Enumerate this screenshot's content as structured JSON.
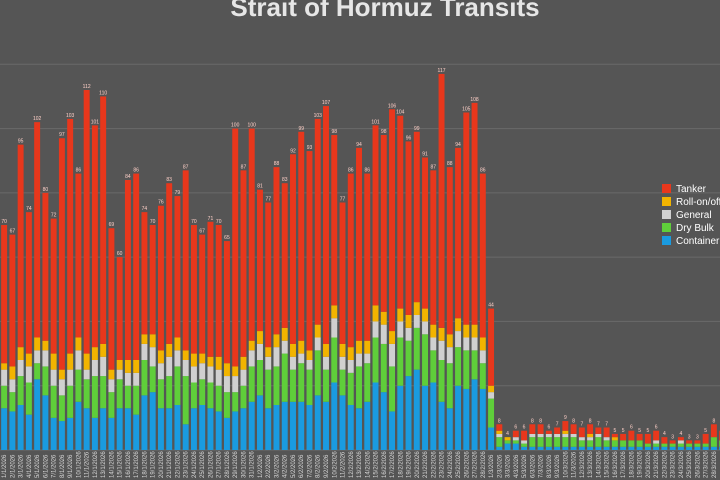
{
  "colors": {
    "background": "#555555",
    "gridline": "#6a6a6a",
    "title": "#e6e6e6",
    "tick": "#d8d8d8",
    "valueLabel": "#ffd0c8",
    "legendText": "#ffffff"
  },
  "chart_data": {
    "type": "bar",
    "stacked": true,
    "title": "Strait of Hormuz Transits",
    "xlabel": "",
    "ylabel": "",
    "ylim": [
      0,
      140
    ],
    "grid": true,
    "legend_position": "right",
    "legend_order": [
      "Tanker",
      "Roll-on/off",
      "General",
      "Dry Bulk",
      "Container"
    ],
    "categories": [
      "1/1/2026",
      "2/1/2026",
      "3/1/2026",
      "4/1/2026",
      "5/1/2026",
      "6/1/2026",
      "7/1/2026",
      "8/1/2026",
      "9/1/2026",
      "10/1/2026",
      "11/1/2026",
      "12/1/2026",
      "13/1/2026",
      "14/1/2026",
      "15/1/2026",
      "16/1/2026",
      "17/1/2026",
      "18/1/2026",
      "19/1/2026",
      "20/1/2026",
      "21/1/2026",
      "22/1/2026",
      "23/1/2026",
      "24/1/2026",
      "25/1/2026",
      "26/1/2026",
      "27/1/2026",
      "28/1/2026",
      "29/1/2026",
      "30/1/2026",
      "31/1/2026",
      "1/2/2026",
      "2/2/2026",
      "3/2/2026",
      "4/2/2026",
      "5/2/2026",
      "6/2/2026",
      "7/2/2026",
      "8/2/2026",
      "9/2/2026",
      "10/2/2026",
      "11/2/2026",
      "12/2/2026",
      "13/2/2026",
      "14/2/2026",
      "15/2/2026",
      "16/2/2026",
      "17/2/2026",
      "18/2/2026",
      "19/2/2026",
      "20/2/2026",
      "21/2/2026",
      "22/2/2026",
      "23/2/2026",
      "24/2/2026",
      "25/2/2026",
      "26/2/2026",
      "27/2/2026",
      "28/2/2026",
      "1/3/2026",
      "2/3/2026",
      "3/3/2026",
      "4/3/2026",
      "5/3/2026",
      "6/3/2026",
      "7/3/2026",
      "8/3/2026",
      "9/3/2026",
      "10/3/2026",
      "11/3/2026",
      "12/3/2026",
      "13/3/2026",
      "14/3/2026",
      "15/3/2026",
      "16/3/2026",
      "17/3/2026",
      "18/3/2026",
      "19/3/2026",
      "20/3/2026",
      "21/3/2026",
      "22/3/2026",
      "23/3/2026",
      "24/3/2026",
      "25/3/2026",
      "26/3/2026",
      "27/3/2026",
      "28/3/2026",
      "29/3/2026",
      "30/3/2026",
      "31/3/2026",
      "1/4/2026",
      "2/4/2026",
      "3/4/2026",
      "4/4/2026",
      "5/4/2026",
      "6/4/2026",
      "7/4/2026",
      "8/4/2026",
      "9/4/2026",
      "10/4/2026",
      "11/4/2026",
      "12/4/2026"
    ],
    "series": [
      {
        "name": "Container",
        "color": "#1a9be0",
        "values": [
          13,
          12,
          14,
          11,
          22,
          17,
          10,
          9,
          10,
          15,
          13,
          10,
          13,
          10,
          13,
          13,
          11,
          17,
          18,
          13,
          13,
          14,
          8,
          13,
          14,
          13,
          12,
          10,
          12,
          13,
          15,
          17,
          13,
          14,
          15,
          15,
          15,
          14,
          17,
          15,
          21,
          17,
          14,
          13,
          15,
          21,
          18,
          12,
          20,
          23,
          25,
          20,
          21,
          15,
          13,
          20,
          19,
          22,
          19,
          7,
          1,
          2,
          2,
          1,
          1,
          1,
          1,
          1,
          1,
          1,
          1,
          1,
          1,
          1,
          1,
          1,
          1,
          1,
          1,
          1,
          1,
          1,
          1,
          1,
          1,
          1,
          1,
          1,
          1,
          1,
          2,
          1,
          1,
          1,
          1,
          1,
          2,
          1,
          1,
          1,
          1,
          1
        ]
      },
      {
        "name": "Dry Bulk",
        "color": "#5fce3a",
        "values": [
          7,
          6,
          9,
          10,
          5,
          9,
          10,
          8,
          10,
          10,
          9,
          13,
          10,
          8,
          9,
          7,
          9,
          11,
          8,
          9,
          10,
          12,
          15,
          8,
          8,
          8,
          8,
          8,
          6,
          7,
          11,
          11,
          12,
          12,
          15,
          10,
          12,
          11,
          14,
          10,
          14,
          8,
          10,
          13,
          12,
          14,
          15,
          14,
          15,
          11,
          13,
          16,
          10,
          13,
          14,
          12,
          12,
          9,
          8,
          9,
          3,
          1,
          1,
          1,
          3,
          3,
          3,
          3,
          3,
          3,
          2,
          2,
          3,
          2,
          2,
          2,
          2,
          2,
          1,
          1,
          1,
          1,
          1,
          1,
          1,
          1,
          3,
          2,
          2,
          2,
          2,
          2,
          2,
          2,
          2,
          2,
          2,
          2,
          2,
          2,
          2,
          6
        ]
      },
      {
        "name": "General",
        "color": "#d0d0d0",
        "values": [
          5,
          4,
          5,
          5,
          4,
          5,
          5,
          5,
          5,
          6,
          3,
          5,
          6,
          4,
          3,
          4,
          4,
          5,
          6,
          5,
          6,
          5,
          5,
          5,
          5,
          5,
          5,
          5,
          5,
          5,
          5,
          5,
          4,
          6,
          4,
          4,
          3,
          3,
          4,
          4,
          6,
          4,
          4,
          4,
          3,
          5,
          6,
          7,
          5,
          4,
          4,
          4,
          4,
          6,
          5,
          5,
          4,
          4,
          4,
          2,
          1,
          0,
          1,
          1,
          1,
          1,
          1,
          1,
          1,
          1,
          1,
          1,
          1,
          1,
          0,
          0,
          0,
          0,
          0,
          1,
          0,
          0,
          1,
          0,
          0,
          0,
          0,
          0,
          1,
          0,
          1,
          0,
          1,
          0,
          0,
          0,
          0,
          0,
          0,
          0,
          1,
          1
        ]
      },
      {
        "name": "Roll-on/off",
        "color": "#f2b400",
        "values": [
          2,
          4,
          4,
          4,
          4,
          3,
          5,
          3,
          5,
          4,
          5,
          4,
          4,
          3,
          3,
          4,
          4,
          3,
          4,
          4,
          4,
          4,
          3,
          4,
          3,
          3,
          4,
          4,
          3,
          4,
          3,
          4,
          3,
          4,
          4,
          4,
          4,
          3,
          4,
          4,
          4,
          4,
          4,
          4,
          4,
          5,
          4,
          4,
          4,
          4,
          4,
          4,
          4,
          4,
          4,
          4,
          4,
          4,
          4,
          2,
          1,
          1,
          0,
          0,
          0,
          0,
          0,
          0,
          1,
          0,
          0,
          1,
          0,
          0,
          1,
          0,
          0,
          0,
          0,
          0,
          0,
          0,
          0,
          0,
          0,
          0,
          0,
          0,
          0,
          0,
          0,
          0,
          0,
          0,
          0,
          0,
          0,
          0,
          0,
          0,
          0,
          1
        ]
      },
      {
        "name": "Tanker",
        "color": "#e8371c",
        "values": [
          43,
          41,
          63,
          44,
          67,
          46,
          42,
          72,
          73,
          51,
          82,
          69,
          77,
          44,
          32,
          56,
          58,
          38,
          34,
          45,
          50,
          44,
          56,
          40,
          37,
          42,
          41,
          38,
          74,
          58,
          66,
          44,
          45,
          52,
          45,
          59,
          65,
          62,
          64,
          74,
          53,
          44,
          54,
          60,
          52,
          56,
          55,
          69,
          60,
          54,
          53,
          47,
          48,
          79,
          52,
          53,
          66,
          69,
          51,
          24,
          2,
          0,
          2,
          3,
          3,
          3,
          1,
          2,
          3,
          3,
          3,
          3,
          2,
          3,
          1,
          2,
          3,
          2,
          3,
          3,
          2,
          1,
          1,
          1,
          1,
          3,
          4,
          3,
          2,
          2,
          2,
          2,
          2,
          2,
          3,
          3,
          3,
          2,
          3,
          2,
          2,
          2
        ]
      }
    ]
  }
}
